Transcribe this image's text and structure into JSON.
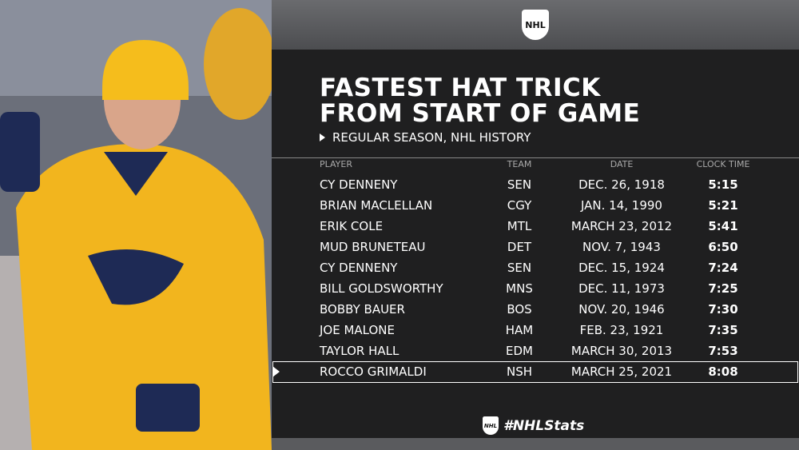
{
  "logo": "NHL",
  "title": [
    "FASTEST HAT TRICK",
    "FROM START OF GAME"
  ],
  "subtitle": "REGULAR SEASON, NHL HISTORY",
  "table": {
    "columns": [
      "PLAYER",
      "TEAM",
      "DATE",
      "CLOCK TIME"
    ],
    "rows": [
      [
        "CY DENNENY",
        "SEN",
        "DEC. 26, 1918",
        "5:15"
      ],
      [
        "BRIAN MACLELLAN",
        "CGY",
        "JAN. 14, 1990",
        "5:21"
      ],
      [
        "ERIK COLE",
        "MTL",
        "MARCH 23, 2012",
        "5:41"
      ],
      [
        "MUD BRUNETEAU",
        "DET",
        "NOV. 7, 1943",
        "6:50"
      ],
      [
        "CY DENNENY",
        "SEN",
        "DEC. 15, 1924",
        "7:24"
      ],
      [
        "BILL GOLDSWORTHY",
        "MNS",
        "DEC. 11, 1973",
        "7:25"
      ],
      [
        "BOBBY BAUER",
        "BOS",
        "NOV. 20, 1946",
        "7:30"
      ],
      [
        "JOE MALONE",
        "HAM",
        "FEB. 23, 1921",
        "7:35"
      ],
      [
        "TAYLOR HALL",
        "EDM",
        "MARCH 30, 2013",
        "7:53"
      ],
      [
        "ROCCO GRIMALDI",
        "NSH",
        "MARCH 25, 2021",
        "8:08"
      ]
    ],
    "highlight_row": 9
  },
  "footer": {
    "logo": "NHL",
    "hashtag": "#NHLStats"
  }
}
